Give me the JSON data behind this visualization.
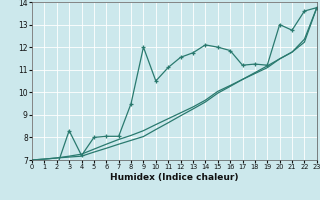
{
  "xlabel": "Humidex (Indice chaleur)",
  "xlim": [
    0,
    23
  ],
  "ylim": [
    7,
    14
  ],
  "xticks": [
    0,
    1,
    2,
    3,
    4,
    5,
    6,
    7,
    8,
    9,
    10,
    11,
    12,
    13,
    14,
    15,
    16,
    17,
    18,
    19,
    20,
    21,
    22,
    23
  ],
  "yticks": [
    7,
    8,
    9,
    10,
    11,
    12,
    13,
    14
  ],
  "bg_color": "#cce8ec",
  "line_color": "#2a7a6f",
  "grid_color": "#ffffff",
  "series1_x": [
    0,
    1,
    2,
    3,
    4,
    5,
    6,
    7,
    8,
    9,
    10,
    11,
    12,
    13,
    14,
    15,
    16,
    17,
    18,
    19,
    20,
    21,
    22,
    23
  ],
  "series1_y": [
    6.95,
    6.7,
    6.7,
    8.3,
    7.2,
    8.0,
    8.05,
    8.05,
    9.5,
    12.0,
    10.5,
    11.1,
    11.55,
    11.75,
    12.1,
    12.0,
    11.85,
    11.2,
    11.25,
    11.2,
    13.0,
    12.75,
    13.6,
    13.75
  ],
  "series2_x": [
    0,
    1,
    2,
    3,
    4,
    5,
    6,
    7,
    8,
    9,
    10,
    11,
    12,
    13,
    14,
    15,
    16,
    17,
    18,
    19,
    20,
    21,
    22,
    23
  ],
  "series2_y": [
    7.0,
    7.04,
    7.09,
    7.13,
    7.17,
    7.35,
    7.52,
    7.7,
    7.87,
    8.04,
    8.35,
    8.65,
    8.96,
    9.26,
    9.57,
    9.96,
    10.26,
    10.57,
    10.87,
    11.17,
    11.48,
    11.78,
    12.22,
    13.75
  ],
  "series3_x": [
    0,
    1,
    2,
    3,
    4,
    5,
    6,
    7,
    8,
    9,
    10,
    11,
    12,
    13,
    14,
    15,
    16,
    17,
    18,
    19,
    20,
    21,
    22,
    23
  ],
  "series3_y": [
    7.0,
    7.04,
    7.09,
    7.17,
    7.26,
    7.48,
    7.7,
    7.91,
    8.09,
    8.3,
    8.57,
    8.83,
    9.09,
    9.35,
    9.65,
    10.04,
    10.3,
    10.57,
    10.83,
    11.09,
    11.48,
    11.78,
    12.35,
    13.75
  ]
}
